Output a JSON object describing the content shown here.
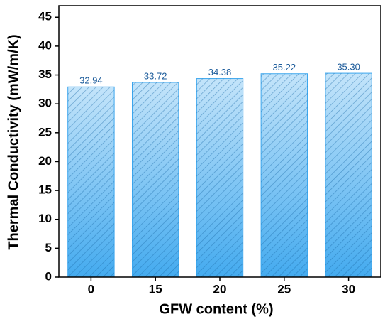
{
  "chart_data": {
    "type": "bar",
    "categories": [
      "0",
      "15",
      "20",
      "25",
      "30"
    ],
    "values": [
      32.94,
      33.72,
      34.38,
      35.22,
      35.3
    ],
    "value_labels": [
      "32.94",
      "33.72",
      "34.38",
      "35.22",
      "35.30"
    ],
    "color": "#3aa6ee",
    "x_label": "GFW content (%)",
    "y_label": "Thermal Conductivity (mW/m/K)",
    "ylim": [
      0,
      47
    ],
    "yticks": [
      0,
      5,
      10,
      15,
      20,
      25,
      30,
      35,
      40,
      45
    ]
  }
}
